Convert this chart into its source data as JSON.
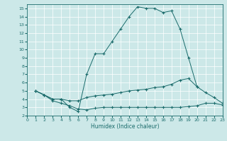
{
  "xlabel": "Humidex (Indice chaleur)",
  "xlim": [
    0,
    23
  ],
  "ylim": [
    2,
    15.5
  ],
  "xticks": [
    0,
    1,
    2,
    3,
    4,
    5,
    6,
    7,
    8,
    9,
    10,
    11,
    12,
    13,
    14,
    15,
    16,
    17,
    18,
    19,
    20,
    21,
    22,
    23
  ],
  "yticks": [
    2,
    3,
    4,
    5,
    6,
    7,
    8,
    9,
    10,
    11,
    12,
    13,
    14,
    15
  ],
  "bg_color": "#cce8e8",
  "line_color": "#1a6b6b",
  "line1_x": [
    1,
    2,
    3,
    4,
    5,
    6,
    7,
    8,
    9,
    10,
    11,
    12,
    13,
    14,
    15,
    16,
    17,
    18,
    19,
    20
  ],
  "line1_y": [
    5.0,
    4.5,
    4.0,
    4.0,
    3.0,
    2.5,
    7.0,
    9.5,
    9.5,
    11.0,
    12.5,
    14.0,
    15.2,
    15.0,
    15.0,
    14.5,
    14.7,
    12.5,
    9.0,
    5.5
  ],
  "line2_x": [
    1,
    2,
    3,
    4,
    5,
    6,
    7,
    8,
    9,
    10,
    11,
    12,
    13,
    14,
    15,
    16,
    17,
    18,
    19,
    20,
    21,
    22,
    23
  ],
  "line2_y": [
    5.0,
    4.5,
    4.0,
    4.0,
    3.8,
    3.8,
    4.2,
    4.4,
    4.5,
    4.6,
    4.8,
    5.0,
    5.1,
    5.2,
    5.4,
    5.5,
    5.8,
    6.3,
    6.5,
    5.5,
    4.8,
    4.2,
    3.5
  ],
  "line3_x": [
    1,
    2,
    3,
    4,
    5,
    6,
    7,
    8,
    9,
    10,
    11,
    12,
    13,
    14,
    15,
    16,
    17,
    18,
    19,
    20,
    21,
    22,
    23
  ],
  "line3_y": [
    5.0,
    4.5,
    3.8,
    3.5,
    3.2,
    2.8,
    2.7,
    2.9,
    3.0,
    3.0,
    3.0,
    3.0,
    3.0,
    3.0,
    3.0,
    3.0,
    3.0,
    3.0,
    3.1,
    3.2,
    3.5,
    3.5,
    3.3
  ]
}
